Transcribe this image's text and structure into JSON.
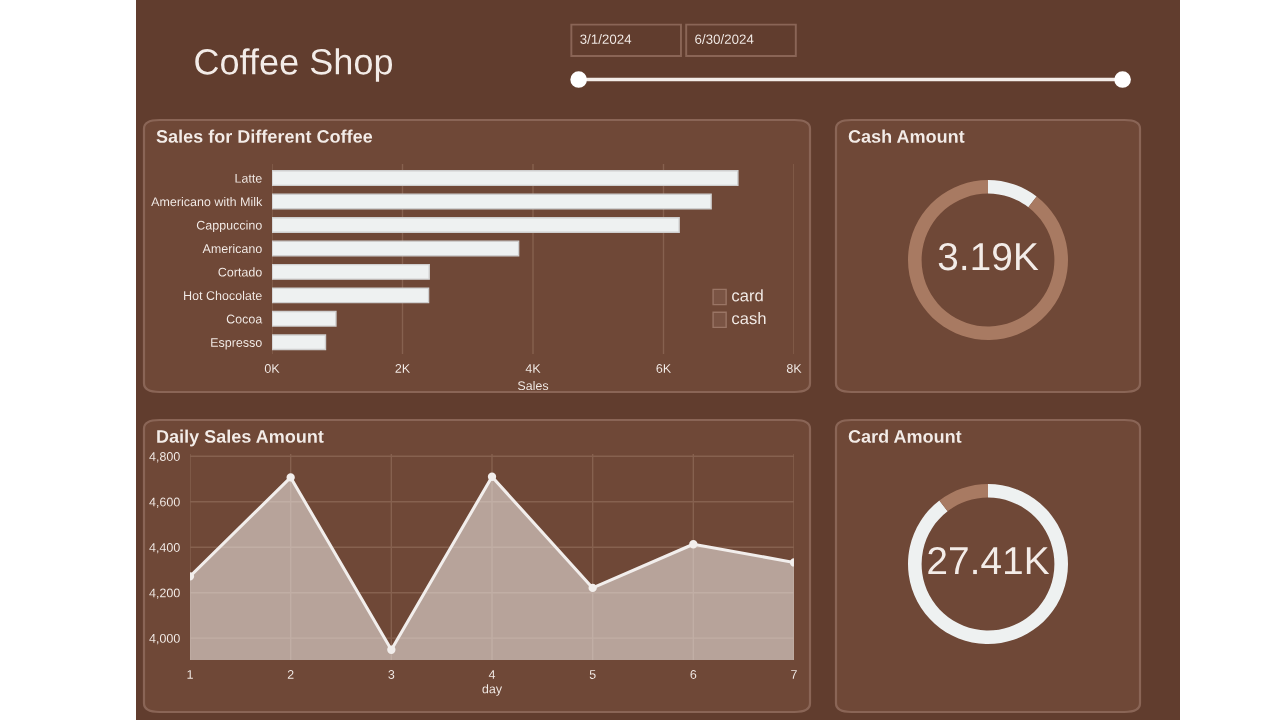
{
  "chart_data": [
    {
      "type": "other",
      "title": "Coffee Shop",
      "annotations": [
        "3/1/2024",
        "6/30/2024"
      ]
    },
    {
      "type": "bar",
      "title": "Sales for Different Coffee",
      "orientation": "horizontal",
      "xlabel": "Sales",
      "categories": [
        "Latte",
        "Americano with Milk",
        "Cappuccino",
        "Americano",
        "Cortado",
        "Hot Chocolate",
        "Cocoa",
        "Espresso"
      ],
      "values": [
        7140,
        6730,
        6240,
        3780,
        2410,
        2400,
        980,
        820
      ],
      "color": "#eef1f1",
      "xlim": [
        0,
        8000
      ],
      "xticks": [
        {
          "value": 0,
          "label": "0K"
        },
        {
          "value": 2000,
          "label": "2K"
        },
        {
          "value": 4000,
          "label": "4K"
        },
        {
          "value": 6000,
          "label": "6K"
        },
        {
          "value": 8000,
          "label": "8K"
        }
      ],
      "grid": "x",
      "annotations": [
        "card",
        "cash"
      ]
    },
    {
      "type": "donut",
      "title": "Cash Amount",
      "categories": [
        null,
        null
      ],
      "values": [
        10.4,
        89.6
      ],
      "colors": [
        "#eef1f1",
        "#a87a62"
      ],
      "annotations": [
        "3.19K"
      ]
    },
    {
      "type": "area",
      "title": "Daily Sales Amount",
      "xlabel": "day",
      "x": [
        1,
        2,
        3,
        4,
        5,
        6,
        7
      ],
      "values": [
        4272,
        4707,
        3949,
        4710,
        4221,
        4413,
        4333
      ],
      "color": "#f2eeec",
      "xlim": [
        1,
        7
      ],
      "ylim": [
        3904,
        4810
      ],
      "xticks": [
        1,
        2,
        3,
        4,
        5,
        6,
        7
      ],
      "yticks": [
        {
          "value": 4000,
          "label": "4,000"
        },
        {
          "value": 4200,
          "label": "4,200"
        },
        {
          "value": 4400,
          "label": "4,400"
        },
        {
          "value": 4600,
          "label": "4,600"
        },
        {
          "value": 4800,
          "label": "4,800"
        }
      ],
      "grid": true,
      "marker": "circle"
    },
    {
      "type": "donut",
      "title": "Card Amount",
      "categories": [
        null,
        null
      ],
      "values": [
        89.6,
        10.4
      ],
      "colors": [
        "#eef1f1",
        "#a87a62"
      ],
      "annotations": [
        "27.41K"
      ]
    }
  ]
}
